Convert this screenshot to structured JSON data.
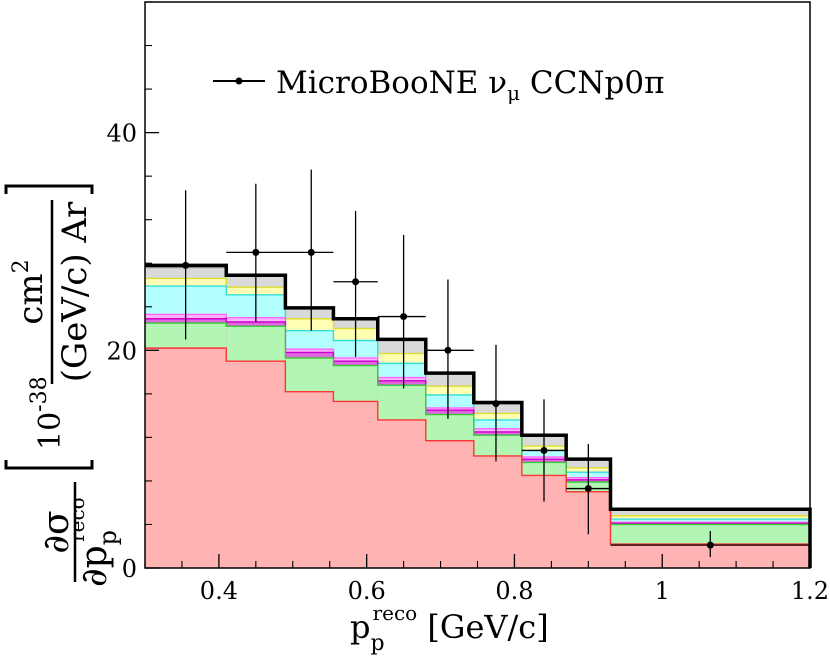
{
  "chart_data": {
    "type": "bar",
    "subtype": "stacked-step-histogram-with-data-points",
    "legend": {
      "label_parts": [
        "MicroBooNE ",
        "ν",
        "μ",
        " CCNp0π"
      ],
      "placement": "top"
    },
    "xlabel_parts": [
      "p",
      "p",
      "reco",
      " [GeV/c]"
    ],
    "ylabel_parts": {
      "fraction_num": [
        "∂σ"
      ],
      "fraction_den": [
        "∂p",
        "p",
        "reco"
      ],
      "factor_base": "10",
      "factor_exp": "-38",
      "unit_num": [
        "cm",
        "2"
      ],
      "unit_den": [
        "(GeV/c) Ar"
      ]
    },
    "xlim": [
      0.3,
      1.2
    ],
    "ylim": [
      0,
      52
    ],
    "x_ticks": [
      0.4,
      0.6,
      0.8,
      1.0,
      1.2
    ],
    "x_tick_labels": [
      "0.4",
      "0.6",
      "0.8",
      "1",
      "1.2"
    ],
    "y_ticks": [
      0,
      20,
      40
    ],
    "y_tick_labels": [
      "0",
      "20",
      "40"
    ],
    "bin_edges": [
      0.3,
      0.41,
      0.49,
      0.555,
      0.615,
      0.68,
      0.745,
      0.81,
      0.87,
      0.93,
      1.2
    ],
    "stack": [
      {
        "values": [
          20.2,
          19.0,
          16.2,
          15.3,
          13.6,
          11.7,
          10.3,
          8.5,
          7.0,
          2.2
        ],
        "fill": "#ffb3b3",
        "line": "#ff3333"
      },
      {
        "values": [
          22.5,
          22.2,
          19.3,
          18.6,
          16.8,
          14.1,
          12.2,
          9.7,
          7.9,
          4.0
        ],
        "fill": "#b3f5b3",
        "line": "#33cc33"
      },
      {
        "values": [
          22.9,
          22.6,
          19.8,
          19.0,
          17.2,
          14.5,
          12.5,
          10.0,
          8.1,
          4.1
        ],
        "fill": "#e066e0",
        "line": "#cc00cc"
      },
      {
        "values": [
          23.3,
          23.0,
          20.1,
          19.3,
          17.5,
          14.7,
          12.8,
          10.2,
          8.3,
          4.2
        ],
        "fill": "#ffb3ff",
        "line": "#ff66ff"
      },
      {
        "values": [
          25.9,
          25.1,
          21.8,
          20.9,
          18.8,
          15.9,
          13.6,
          10.8,
          8.8,
          4.5
        ],
        "fill": "#b3ffff",
        "line": "#33dddd"
      },
      {
        "values": [
          26.6,
          25.8,
          22.9,
          22.0,
          19.7,
          16.7,
          14.2,
          11.2,
          9.2,
          4.8
        ],
        "fill": "#ffffb3",
        "line": "#dddd33"
      },
      {
        "values": [
          27.6,
          26.8,
          23.9,
          22.9,
          21.0,
          17.9,
          15.2,
          12.2,
          10.0,
          5.4
        ],
        "fill": "#d9d9d9",
        "line": "#999999"
      }
    ],
    "total": [
      27.8,
      26.9,
      23.9,
      22.9,
      21.0,
      17.9,
      15.2,
      12.2,
      10.0,
      5.4
    ],
    "data_points": {
      "x": [
        0.355,
        0.45,
        0.525,
        0.585,
        0.65,
        0.71,
        0.775,
        0.84,
        0.9,
        1.065
      ],
      "y": [
        27.8,
        29.0,
        29.0,
        26.3,
        23.1,
        20.0,
        15.1,
        10.8,
        7.3,
        2.1
      ],
      "y_low": [
        21.0,
        22.6,
        21.8,
        19.4,
        16.5,
        13.7,
        9.8,
        6.1,
        3.1,
        1.0
      ],
      "y_high": [
        34.7,
        35.3,
        36.6,
        32.8,
        30.6,
        26.5,
        20.5,
        15.5,
        11.4,
        3.4
      ],
      "x_low": [
        0.3,
        0.41,
        0.49,
        0.555,
        0.615,
        0.68,
        0.745,
        0.81,
        0.87,
        0.93
      ],
      "x_high": [
        0.41,
        0.49,
        0.555,
        0.615,
        0.68,
        0.745,
        0.81,
        0.87,
        0.93,
        1.2
      ]
    },
    "grid": false
  }
}
